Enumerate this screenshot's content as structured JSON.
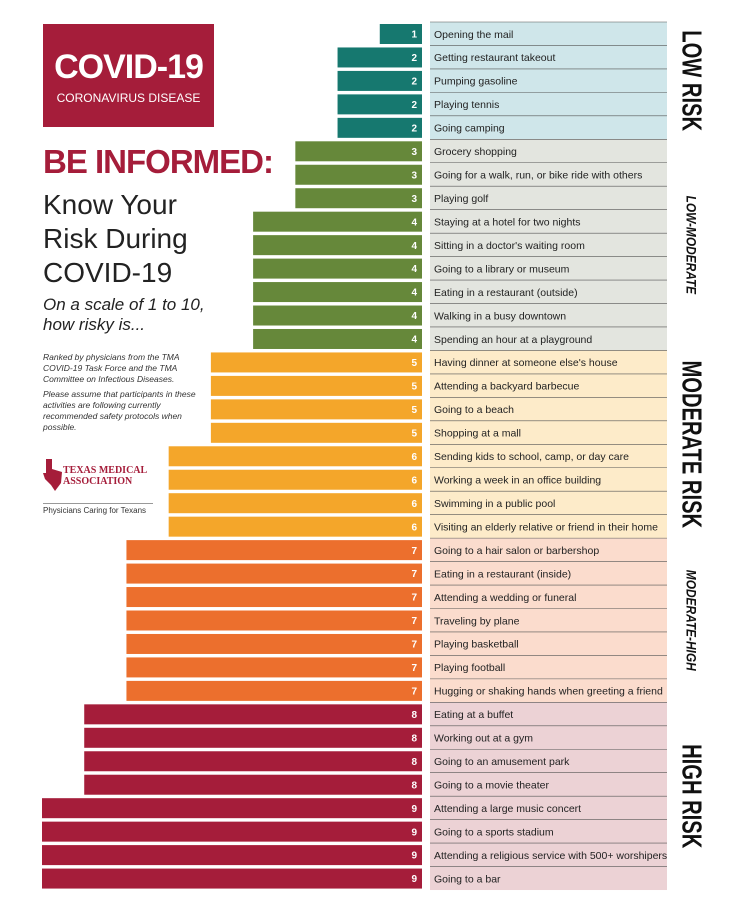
{
  "header": {
    "badge_title": "COVID-19",
    "badge_subtitle": "CORONAVIRUS DISEASE",
    "headline": "BE INFORMED:",
    "title_lines": [
      "Know Your",
      "Risk During",
      "COVID-19"
    ],
    "question_lines": [
      "On a scale of 1 to 10,",
      "how risky is..."
    ],
    "notes": [
      "Ranked by physicians from the TMA COVID-19 Task Force and the TMA Committee on Infectious Diseases.",
      "Please assume that participants in these activities are following currently recommended safety protocols when possible."
    ],
    "logo_lines": [
      "TEXAS MEDICAL",
      "ASSOCIATION"
    ],
    "tagline": "Physicians Caring for Texans"
  },
  "chart_data": {
    "type": "bar",
    "orientation": "horizontal",
    "series": [
      {
        "name": "LOW RISK",
        "italic": false,
        "color": "#16786f",
        "background": "#cfe6ea",
        "categories": [
          "Opening the mail",
          "Getting restaurant takeout",
          "Pumping gasoline",
          "Playing tennis",
          "Going camping"
        ],
        "values": [
          1,
          2,
          2,
          2,
          2
        ]
      },
      {
        "name": "LOW-MODERATE",
        "italic": true,
        "color": "#66883a",
        "background": "#e3e5df",
        "categories": [
          "Grocery shopping",
          "Going for a walk, run, or bike ride with others",
          "Playing golf",
          "Staying at a hotel for two nights",
          "Sitting in a doctor's waiting room",
          "Going to a library or museum",
          "Eating in a restaurant (outside)",
          "Walking in a busy downtown",
          "Spending an hour at a playground"
        ],
        "values": [
          3,
          3,
          3,
          4,
          4,
          4,
          4,
          4,
          4
        ]
      },
      {
        "name": "MODERATE RISK",
        "italic": false,
        "color": "#f4a62a",
        "background": "#fdebc9",
        "categories": [
          "Having dinner at someone else's house",
          "Attending a backyard barbecue",
          "Going to a beach",
          "Shopping at a mall",
          "Sending kids to school, camp, or day care",
          "Working a week in an office building",
          "Swimming in a public pool",
          "Visiting an elderly relative or friend in their home"
        ],
        "values": [
          5,
          5,
          5,
          5,
          6,
          6,
          6,
          6
        ]
      },
      {
        "name": "MODERATE-HIGH",
        "italic": true,
        "color": "#ec6f2d",
        "background": "#fbdccd",
        "categories": [
          "Going to a hair salon or barbershop",
          "Eating in a restaurant (inside)",
          "Attending a wedding or funeral",
          "Traveling by plane",
          "Playing basketball",
          "Playing football",
          "Hugging or shaking hands when greeting a friend"
        ],
        "values": [
          7,
          7,
          7,
          7,
          7,
          7,
          7
        ]
      },
      {
        "name": "HIGH RISK",
        "italic": false,
        "color": "#a51d3a",
        "background": "#ecd2d5",
        "categories": [
          "Eating at a buffet",
          "Working out at a gym",
          "Going to an amusement park",
          "Going to a movie theater",
          "Attending a large music concert",
          "Going to a sports stadium",
          "Attending a religious service with 500+ worshipers",
          "Going to a bar"
        ],
        "values": [
          8,
          8,
          8,
          8,
          9,
          9,
          9,
          9
        ]
      }
    ]
  }
}
